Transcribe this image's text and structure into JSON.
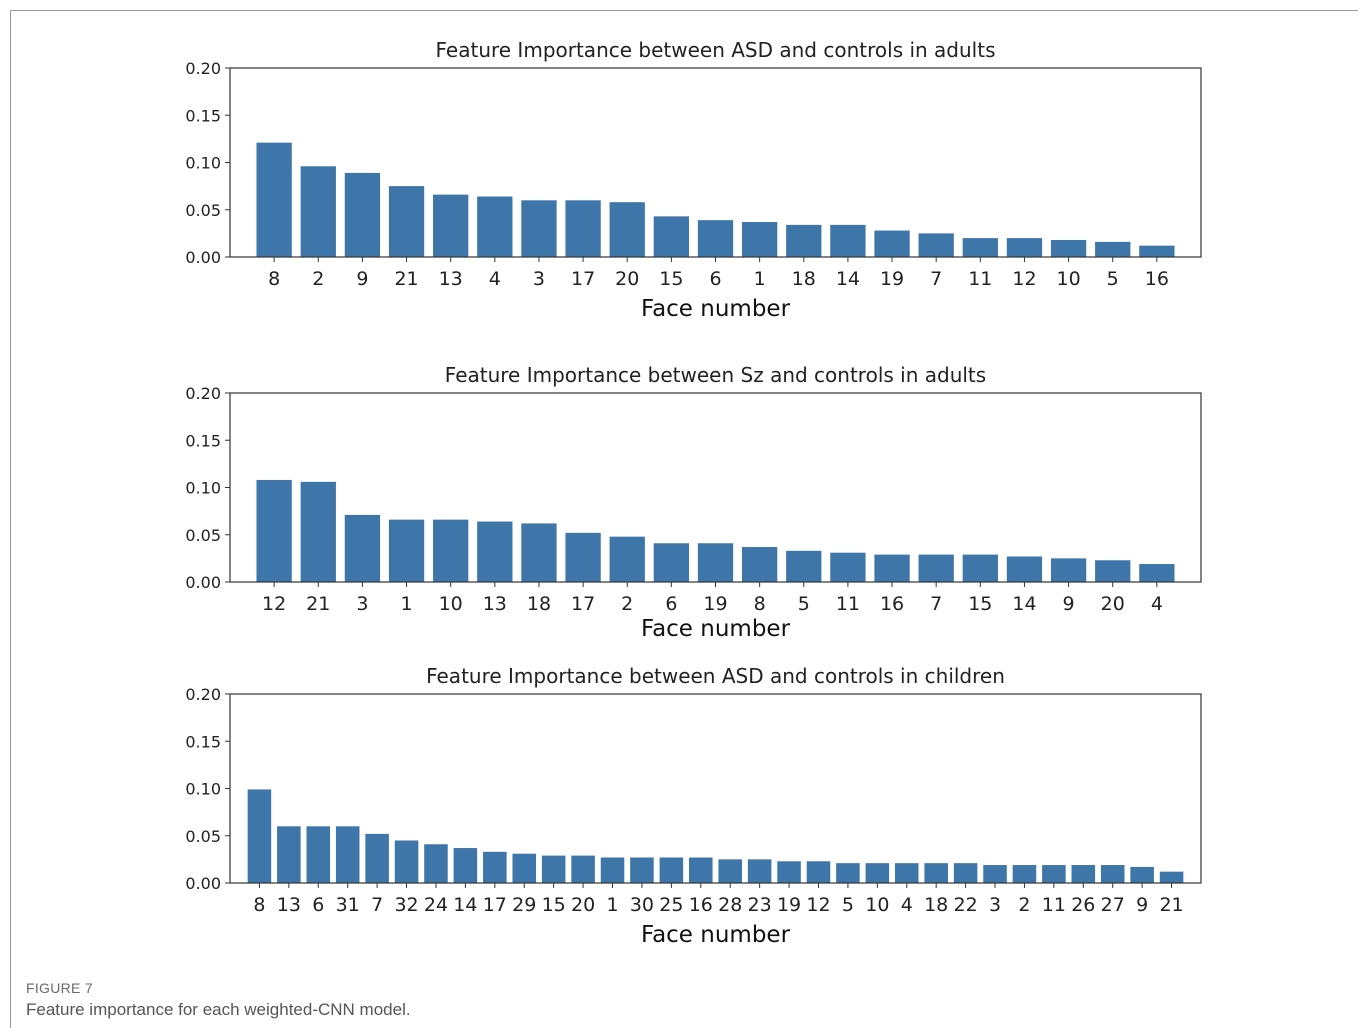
{
  "caption": {
    "label": "FIGURE 7",
    "text": "Feature importance for each weighted-CNN model."
  },
  "style": {
    "bar_color": "#3e76aa",
    "axis_color": "#333333"
  },
  "chart_data": [
    {
      "type": "bar",
      "title": "Feature Importance between ASD and controls in adults",
      "xlabel": "Face number",
      "ylabel": "",
      "ylim": [
        0,
        0.2
      ],
      "yticks": [
        "0.00",
        "0.05",
        "0.10",
        "0.15",
        "0.20"
      ],
      "categories": [
        "8",
        "2",
        "9",
        "21",
        "13",
        "4",
        "3",
        "17",
        "20",
        "15",
        "6",
        "1",
        "18",
        "14",
        "19",
        "7",
        "11",
        "12",
        "10",
        "5",
        "16"
      ],
      "values": [
        0.121,
        0.096,
        0.089,
        0.075,
        0.066,
        0.064,
        0.06,
        0.06,
        0.058,
        0.043,
        0.039,
        0.037,
        0.034,
        0.034,
        0.028,
        0.025,
        0.02,
        0.02,
        0.018,
        0.016,
        0.012
      ]
    },
    {
      "type": "bar",
      "title": "Feature Importance between Sz and controls in adults",
      "xlabel": "Face number",
      "ylabel": "",
      "ylim": [
        0,
        0.2
      ],
      "yticks": [
        "0.00",
        "0.05",
        "0.10",
        "0.15",
        "0.20"
      ],
      "categories": [
        "12",
        "21",
        "3",
        "1",
        "10",
        "13",
        "18",
        "17",
        "2",
        "6",
        "19",
        "8",
        "5",
        "11",
        "16",
        "7",
        "15",
        "14",
        "9",
        "20",
        "4"
      ],
      "values": [
        0.108,
        0.106,
        0.071,
        0.066,
        0.066,
        0.064,
        0.062,
        0.052,
        0.048,
        0.041,
        0.041,
        0.037,
        0.033,
        0.031,
        0.029,
        0.029,
        0.029,
        0.027,
        0.025,
        0.023,
        0.019
      ]
    },
    {
      "type": "bar",
      "title": "Feature Importance between ASD and controls in children",
      "xlabel": "Face number",
      "ylabel": "",
      "ylim": [
        0,
        0.2
      ],
      "yticks": [
        "0.00",
        "0.05",
        "0.10",
        "0.15",
        "0.20"
      ],
      "categories": [
        "8",
        "13",
        "6",
        "31",
        "7",
        "32",
        "24",
        "14",
        "17",
        "29",
        "15",
        "20",
        "1",
        "30",
        "25",
        "16",
        "28",
        "23",
        "19",
        "12",
        "5",
        "10",
        "4",
        "18",
        "22",
        "3",
        "2",
        "11",
        "26",
        "27",
        "9",
        "21"
      ],
      "values": [
        0.099,
        0.06,
        0.06,
        0.06,
        0.052,
        0.045,
        0.041,
        0.037,
        0.033,
        0.031,
        0.029,
        0.029,
        0.027,
        0.027,
        0.027,
        0.027,
        0.025,
        0.025,
        0.023,
        0.023,
        0.021,
        0.021,
        0.021,
        0.021,
        0.021,
        0.019,
        0.019,
        0.019,
        0.019,
        0.019,
        0.017,
        0.012
      ]
    }
  ]
}
